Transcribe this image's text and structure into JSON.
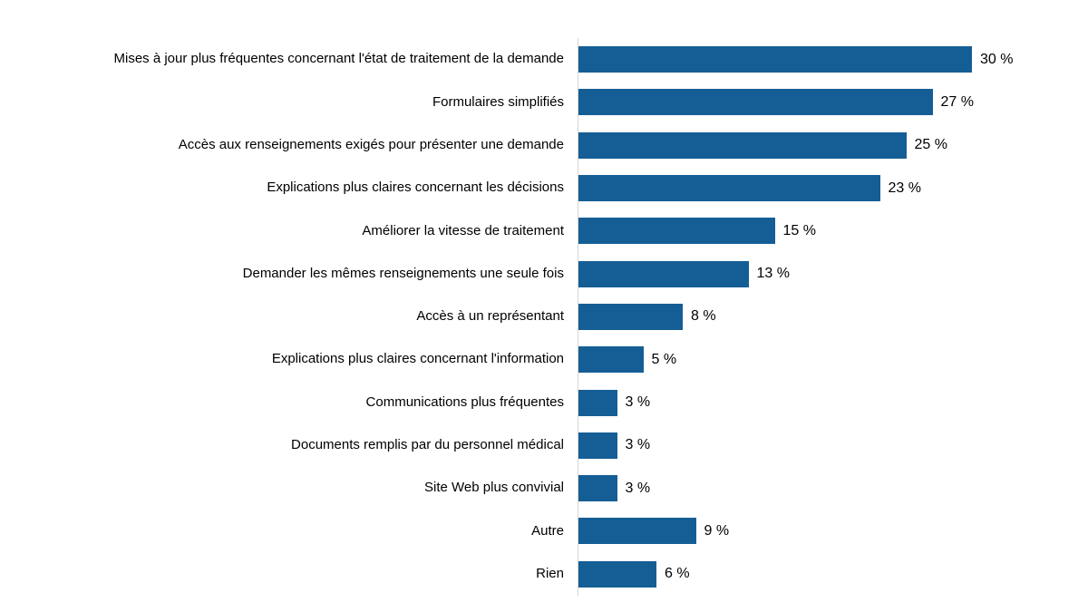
{
  "chart_data": {
    "type": "bar",
    "orientation": "horizontal",
    "title": "",
    "xlabel": "",
    "ylabel": "",
    "xlim": [
      0,
      30
    ],
    "grid": false,
    "legend": "none",
    "bar_color": "#155E95",
    "axis_line_color": "#D6D6D6",
    "text_color": "#000000",
    "categories": [
      "Mises à jour plus fréquentes concernant l'état de traitement de la demande",
      "Formulaires simplifiés",
      "Accès aux renseignements exigés pour présenter une demande",
      "Explications plus claires concernant les décisions",
      "Améliorer la vitesse de traitement",
      "Demander les mêmes renseignements une seule fois",
      "Accès à un représentant",
      "Explications plus claires concernant l'information",
      "Communications plus fréquentes",
      "Documents remplis par du personnel médical",
      "Site Web plus convivial",
      "Autre",
      "Rien"
    ],
    "values": [
      30,
      27,
      25,
      23,
      15,
      13,
      8,
      5,
      3,
      3,
      3,
      9,
      6
    ],
    "value_labels": [
      "30 %",
      "27 %",
      "25 %",
      "23 %",
      "15 %",
      "13 %",
      "8 %",
      "5 %",
      "3 %",
      "3 %",
      "3 %",
      "9 %",
      "6 %"
    ]
  }
}
